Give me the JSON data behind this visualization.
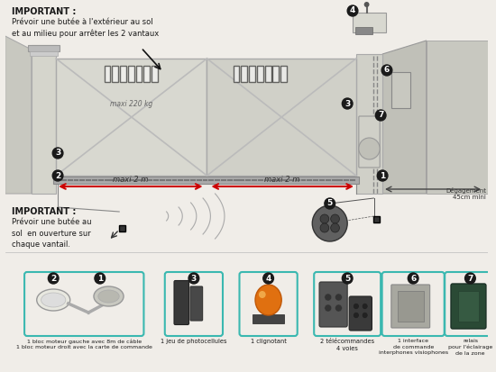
{
  "bg_color": "#f0ede8",
  "important1_title": "IMPORTANT :",
  "important1_text": "Prévoir une butée à l'extérieur au sol\net au milieu pour arrêter les 2 vantaux",
  "important2_title": "IMPORTANT :",
  "important2_text": "Prévoir une butée au\nsol  en ouverture sur\nchaque vantail.",
  "degagement": "Dégagement\n45cm mini",
  "maxi_220kg": "maxi 220 kg",
  "maxi2m_left": "maxi 2 m",
  "maxi2m_right": "maxi 2 m",
  "label1": "1 bloc moteur gauche avec 8m de câble\n1 bloc moteur droit avec la carte de commande",
  "label3": "1 jeu de photocellules",
  "label4": "1 clignotant",
  "label5": "2 télécommandes\n4 voies",
  "label6": "1 interface\nde commande\ninterphones visiophones",
  "label7": "relais\npour l'éclairage\nde la zone",
  "arrow_color": "#cc0000",
  "border_color": "#3ab8b0",
  "text_color": "#1a1a1a"
}
